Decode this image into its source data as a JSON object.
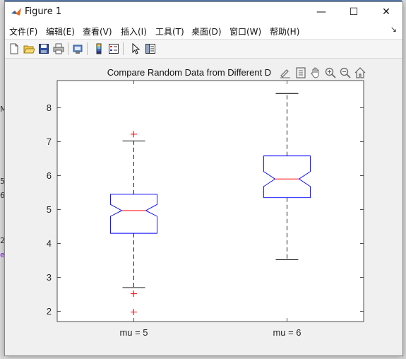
{
  "window": {
    "title": "Figure 1",
    "minimize": "—",
    "maximize": "☐",
    "close": "✕"
  },
  "background_fragments": {
    "a": "5",
    "b": "6",
    "c": "2",
    "d": "M",
    "e": "e"
  },
  "menu": [
    {
      "label": "文件(F)"
    },
    {
      "label": "编辑(E)"
    },
    {
      "label": "查看(V)"
    },
    {
      "label": "插入(I)"
    },
    {
      "label": "工具(T)"
    },
    {
      "label": "桌面(D)"
    },
    {
      "label": "窗口(W)"
    },
    {
      "label": "帮助(H)"
    }
  ],
  "toolbar": [
    "new-figure-icon",
    "open-file-icon",
    "save-icon",
    "print-icon",
    "print-preview-icon",
    "colorbar-icon",
    "legend-icon",
    "pointer-icon",
    "property-inspector-icon"
  ],
  "axes_toolbar": [
    "edit-plot-icon",
    "data-tips-icon",
    "pan-icon",
    "zoom-in-icon",
    "zoom-out-icon",
    "home-icon"
  ],
  "colors": {
    "box": "#0000ff",
    "median": "#ff0000",
    "outlier": "#ff0000",
    "whisker": "#000000"
  },
  "chart_data": {
    "type": "boxplot",
    "title": "Compare Random Data from Different D",
    "categories": [
      "mu = 5",
      "mu = 6"
    ],
    "ylim": [
      1.7,
      8.8
    ],
    "yticks": [
      2,
      3,
      4,
      5,
      6,
      7,
      8
    ],
    "notched": true,
    "grid": false,
    "boxes": [
      {
        "label": "mu = 5",
        "q1": 4.3,
        "median": 4.97,
        "q3": 5.45,
        "notch_low": 4.8,
        "notch_high": 5.15,
        "whisker_low": 2.7,
        "whisker_high": 7.02,
        "outliers": [
          7.22,
          2.52,
          1.98
        ]
      },
      {
        "label": "mu = 6",
        "q1": 5.35,
        "median": 5.9,
        "q3": 6.58,
        "notch_low": 5.68,
        "notch_high": 6.12,
        "whisker_low": 3.52,
        "whisker_high": 8.42,
        "outliers": []
      }
    ]
  }
}
